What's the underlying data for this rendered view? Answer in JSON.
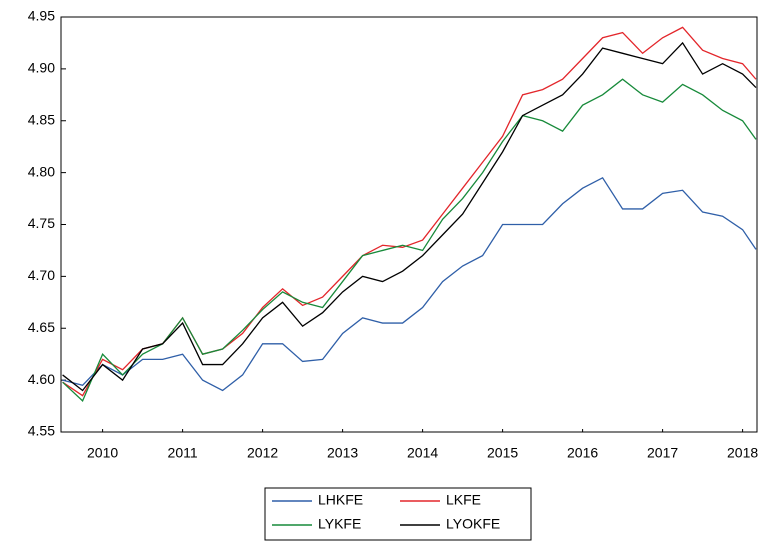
{
  "chart_data": {
    "type": "line",
    "x": [
      2010,
      2010.25,
      2010.5,
      2010.75,
      2011,
      2011.25,
      2011.5,
      2011.75,
      2012,
      2012.25,
      2012.5,
      2012.75,
      2013,
      2013.25,
      2013.5,
      2013.75,
      2014,
      2014.25,
      2014.5,
      2014.75,
      2015,
      2015.25,
      2015.5,
      2015.75,
      2016,
      2016.25,
      2016.5,
      2016.75,
      2017,
      2017.25,
      2017.5,
      2017.75,
      2018,
      2018.25,
      2018.5,
      2018.667
    ],
    "series": [
      {
        "name": "LHKFE",
        "color": "#2f5fa8",
        "values": [
          4.6,
          4.595,
          4.615,
          4.605,
          4.62,
          4.62,
          4.625,
          4.6,
          4.59,
          4.605,
          4.635,
          4.635,
          4.618,
          4.62,
          4.645,
          4.66,
          4.655,
          4.655,
          4.67,
          4.695,
          4.71,
          4.72,
          4.75,
          4.75,
          4.75,
          4.77,
          4.785,
          4.795,
          4.765,
          4.765,
          4.78,
          4.783,
          4.762,
          4.758,
          4.745,
          4.726
        ]
      },
      {
        "name": "LKFE",
        "color": "#e3262b",
        "values": [
          4.598,
          4.585,
          4.62,
          4.61,
          4.63,
          4.635,
          4.66,
          4.625,
          4.63,
          4.645,
          4.67,
          4.688,
          4.672,
          4.68,
          4.7,
          4.72,
          4.73,
          4.728,
          4.735,
          4.76,
          4.785,
          4.81,
          4.835,
          4.875,
          4.88,
          4.89,
          4.91,
          4.93,
          4.935,
          4.915,
          4.93,
          4.94,
          4.918,
          4.91,
          4.905,
          4.89
        ]
      },
      {
        "name": "LYKFE",
        "color": "#178a3a",
        "values": [
          4.598,
          4.58,
          4.625,
          4.605,
          4.625,
          4.635,
          4.66,
          4.625,
          4.63,
          4.648,
          4.668,
          4.685,
          4.675,
          4.67,
          4.695,
          4.72,
          4.725,
          4.73,
          4.725,
          4.755,
          4.775,
          4.8,
          4.83,
          4.855,
          4.85,
          4.84,
          4.865,
          4.875,
          4.89,
          4.875,
          4.868,
          4.885,
          4.875,
          4.86,
          4.85,
          4.832
        ]
      },
      {
        "name": "LYOKFE",
        "color": "#000000",
        "values": [
          4.605,
          4.59,
          4.615,
          4.6,
          4.63,
          4.635,
          4.655,
          4.615,
          4.615,
          4.635,
          4.66,
          4.675,
          4.652,
          4.665,
          4.685,
          4.7,
          4.695,
          4.705,
          4.72,
          4.74,
          4.76,
          4.79,
          4.82,
          4.855,
          4.865,
          4.875,
          4.895,
          4.92,
          4.915,
          4.91,
          4.905,
          4.925,
          4.895,
          4.905,
          4.895,
          4.882
        ]
      }
    ],
    "xlim": [
      2009.98,
      2018.68
    ],
    "xticks": [
      {
        "value": 2010.5,
        "label": "2010"
      },
      {
        "value": 2011.5,
        "label": "2011"
      },
      {
        "value": 2012.5,
        "label": "2012"
      },
      {
        "value": 2013.5,
        "label": "2013"
      },
      {
        "value": 2014.5,
        "label": "2014"
      },
      {
        "value": 2015.5,
        "label": "2015"
      },
      {
        "value": 2016.5,
        "label": "2016"
      },
      {
        "value": 2017.5,
        "label": "2017"
      },
      {
        "value": 2018.5,
        "label": "2018"
      }
    ],
    "ylim": [
      4.55,
      4.95
    ],
    "yticks": [
      4.55,
      {
        "value": 4.6,
        "label": "4.60"
      },
      4.65,
      {
        "value": 4.7,
        "label": "4.70"
      },
      4.75,
      {
        "value": 4.8,
        "label": "4.80"
      },
      4.85,
      {
        "value": 4.9,
        "label": "4.90"
      },
      4.95
    ],
    "legend": "bottom"
  }
}
